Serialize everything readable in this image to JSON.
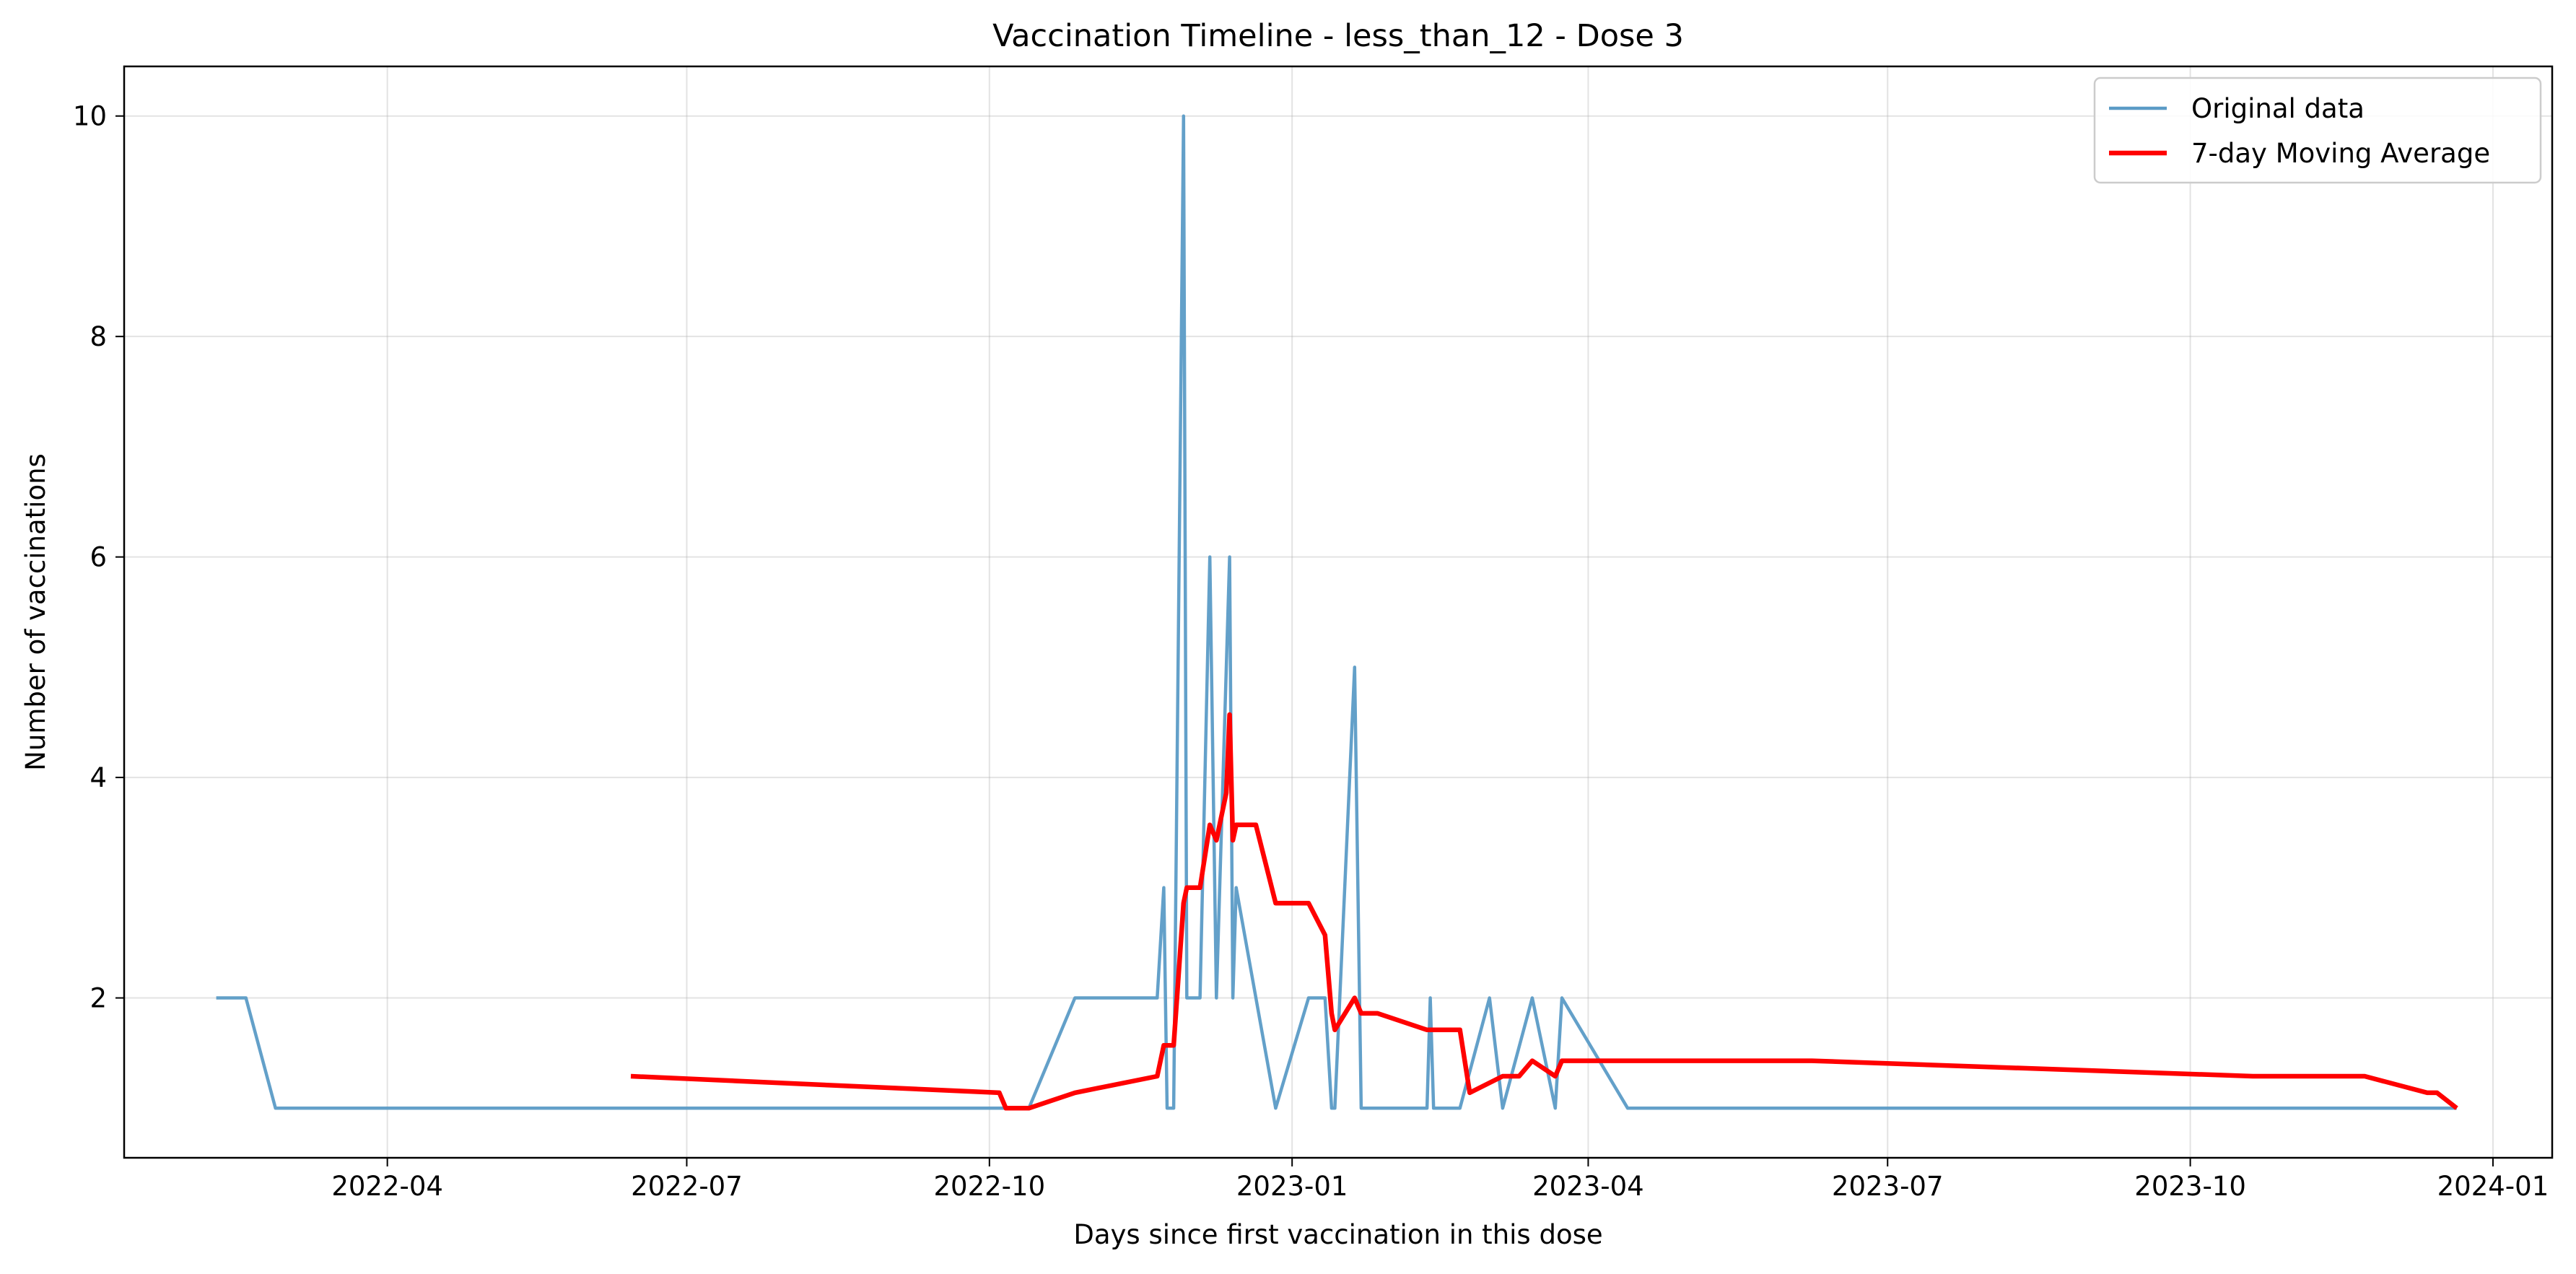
{
  "chart_data": {
    "type": "line",
    "title": "Vaccination Timeline - less_than_12 - Dose 3",
    "xlabel": "Days since first vaccination in this dose",
    "ylabel": "Number of vaccinations",
    "xlim": [
      "2022-01-11",
      "2024-01-19"
    ],
    "ylim": [
      0.55,
      10.45
    ],
    "x_ticks": [
      "2022-04-01",
      "2022-07-01",
      "2022-10-01",
      "2023-01-01",
      "2023-04-01",
      "2023-07-01",
      "2023-10-01",
      "2024-01-01"
    ],
    "x_tick_labels": [
      "2022-04",
      "2022-07",
      "2022-10",
      "2023-01",
      "2023-04",
      "2023-07",
      "2023-10",
      "2024-01"
    ],
    "y_ticks": [
      2,
      4,
      6,
      8,
      10
    ],
    "grid": true,
    "legend_position": "top-right",
    "series": [
      {
        "name": "Original data",
        "color": "#5b9bc6",
        "points": [
          [
            "2022-02-08",
            2
          ],
          [
            "2022-02-17",
            2
          ],
          [
            "2022-02-26",
            1
          ],
          [
            "2022-10-06",
            1
          ],
          [
            "2022-10-13",
            1
          ],
          [
            "2022-10-27",
            2
          ],
          [
            "2022-11-21",
            2
          ],
          [
            "2022-11-23",
            3
          ],
          [
            "2022-11-24",
            1
          ],
          [
            "2022-11-26",
            1
          ],
          [
            "2022-11-29",
            10
          ],
          [
            "2022-11-30",
            2
          ],
          [
            "2022-12-04",
            2
          ],
          [
            "2022-12-07",
            6
          ],
          [
            "2022-12-09",
            2
          ],
          [
            "2022-12-13",
            6
          ],
          [
            "2022-12-14",
            2
          ],
          [
            "2022-12-15",
            3
          ],
          [
            "2022-12-27",
            1
          ],
          [
            "2023-01-06",
            2
          ],
          [
            "2023-01-11",
            2
          ],
          [
            "2023-01-13",
            1
          ],
          [
            "2023-01-14",
            1
          ],
          [
            "2023-01-20",
            5
          ],
          [
            "2023-01-22",
            1
          ],
          [
            "2023-02-11",
            1
          ],
          [
            "2023-02-12",
            2
          ],
          [
            "2023-02-13",
            1
          ],
          [
            "2023-02-21",
            1
          ],
          [
            "2023-03-02",
            2
          ],
          [
            "2023-03-06",
            1
          ],
          [
            "2023-03-15",
            2
          ],
          [
            "2023-03-22",
            1
          ],
          [
            "2023-03-24",
            2
          ],
          [
            "2023-04-13",
            1
          ],
          [
            "2023-12-21",
            1
          ]
        ]
      },
      {
        "name": "7-day Moving Average",
        "color": "#ff0000",
        "points": [
          [
            "2022-06-14",
            1.29
          ],
          [
            "2022-10-04",
            1.14
          ],
          [
            "2022-10-06",
            1.0
          ],
          [
            "2022-10-13",
            1.0
          ],
          [
            "2022-10-27",
            1.14
          ],
          [
            "2022-11-21",
            1.29
          ],
          [
            "2022-11-23",
            1.57
          ],
          [
            "2022-11-26",
            1.57
          ],
          [
            "2022-11-29",
            2.86
          ],
          [
            "2022-11-30",
            3.0
          ],
          [
            "2022-12-04",
            3.0
          ],
          [
            "2022-12-07",
            3.57
          ],
          [
            "2022-12-09",
            3.43
          ],
          [
            "2022-12-12",
            3.86
          ],
          [
            "2022-12-13",
            4.57
          ],
          [
            "2022-12-14",
            3.43
          ],
          [
            "2022-12-15",
            3.57
          ],
          [
            "2022-12-21",
            3.57
          ],
          [
            "2022-12-27",
            2.86
          ],
          [
            "2023-01-06",
            2.86
          ],
          [
            "2023-01-11",
            2.57
          ],
          [
            "2023-01-13",
            1.86
          ],
          [
            "2023-01-14",
            1.71
          ],
          [
            "2023-01-20",
            2.0
          ],
          [
            "2023-01-22",
            1.86
          ],
          [
            "2023-01-27",
            1.86
          ],
          [
            "2023-02-11",
            1.71
          ],
          [
            "2023-02-21",
            1.71
          ],
          [
            "2023-02-24",
            1.14
          ],
          [
            "2023-03-06",
            1.29
          ],
          [
            "2023-03-11",
            1.29
          ],
          [
            "2023-03-15",
            1.43
          ],
          [
            "2023-03-22",
            1.29
          ],
          [
            "2023-03-24",
            1.43
          ],
          [
            "2023-06-08",
            1.43
          ],
          [
            "2023-10-20",
            1.29
          ],
          [
            "2023-11-23",
            1.29
          ],
          [
            "2023-12-12",
            1.14
          ],
          [
            "2023-12-15",
            1.14
          ],
          [
            "2023-12-21",
            1.0
          ]
        ]
      }
    ]
  }
}
